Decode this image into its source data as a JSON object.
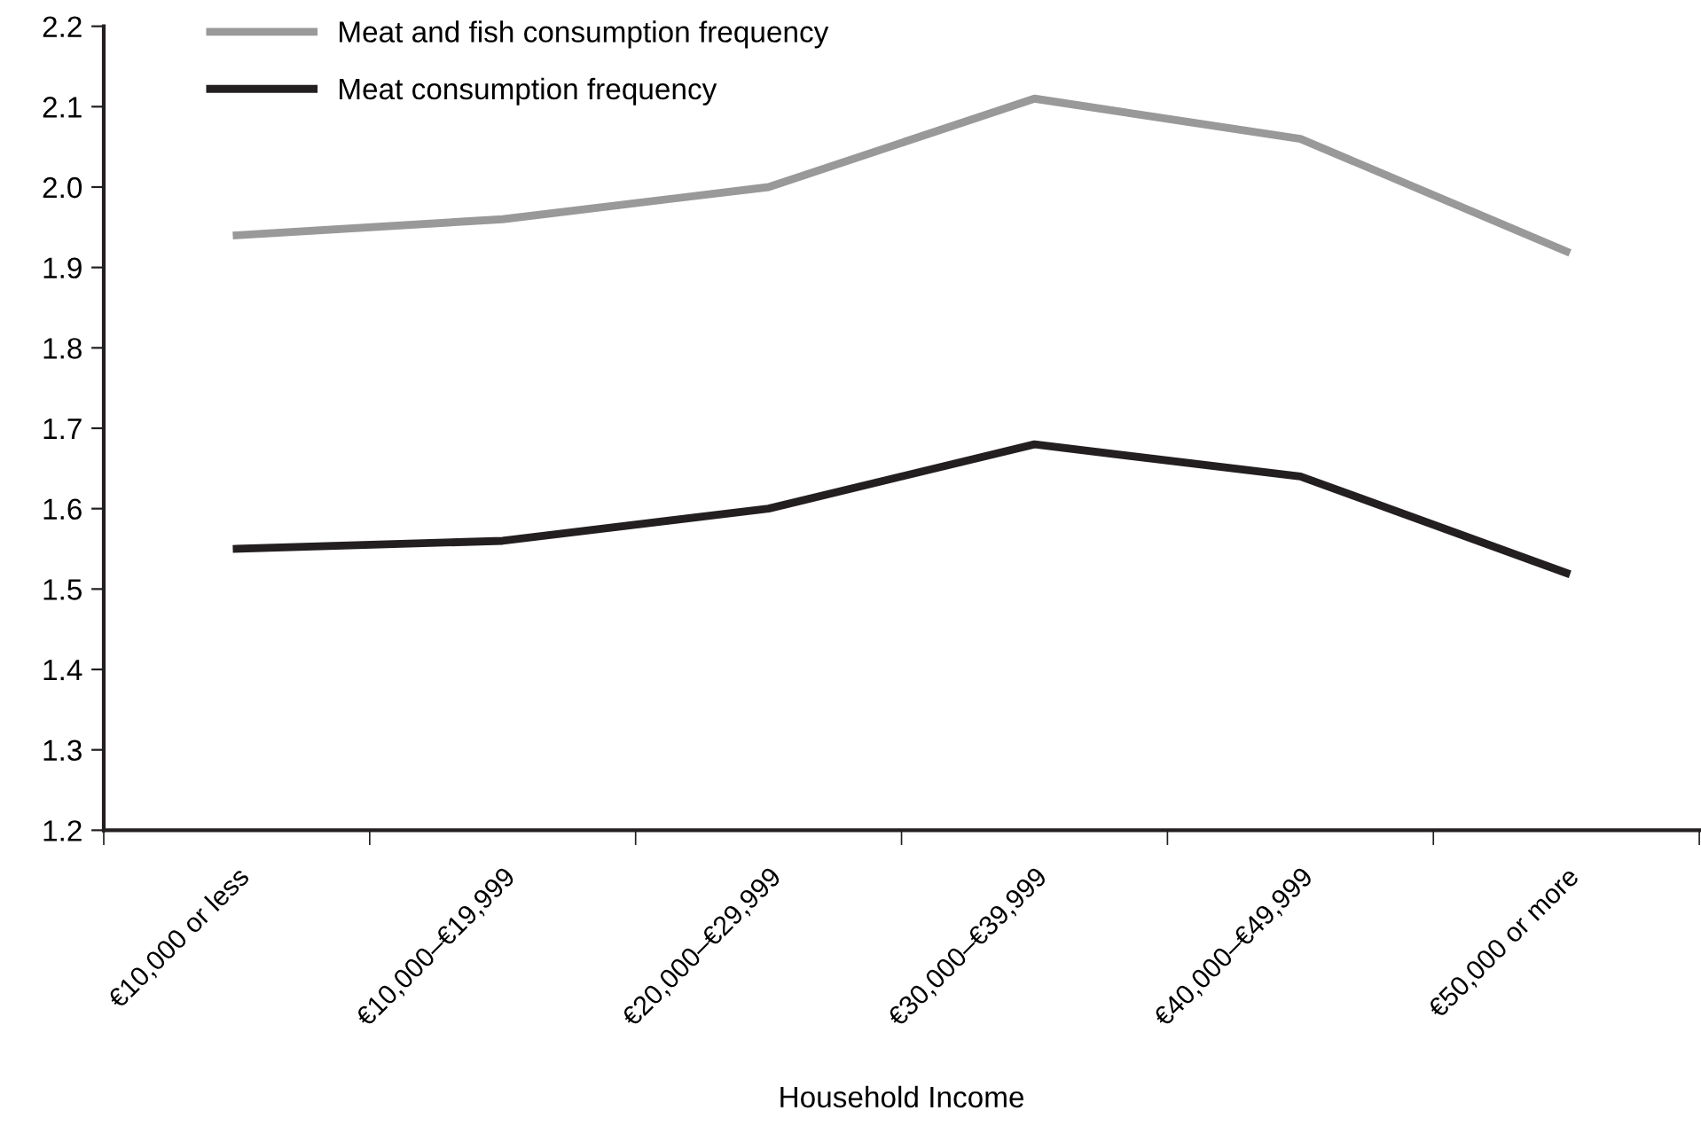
{
  "chart_data": {
    "type": "line",
    "xlabel": "Household Income",
    "categories": [
      "€10,000 or less",
      "€10,000–€19,999",
      "€20,000–€29,999",
      "€30,000–€39,999",
      "€40,000–€49,999",
      "€50,000 or more"
    ],
    "series": [
      {
        "name": "Meat and fish consumption frequency",
        "color": "#999999",
        "values": [
          1.94,
          1.96,
          2.0,
          2.11,
          2.06,
          1.92
        ]
      },
      {
        "name": "Meat consumption frequency",
        "color": "#231f20",
        "values": [
          1.55,
          1.56,
          1.6,
          1.68,
          1.64,
          1.52
        ]
      }
    ],
    "ylim": [
      1.2,
      2.2
    ],
    "yticks": [
      1.2,
      1.3,
      1.4,
      1.5,
      1.6,
      1.7,
      1.8,
      1.9,
      {
        "value": 2,
        "label": "2.0"
      },
      2.1,
      2.2
    ],
    "grid": false,
    "legend": "top left",
    "marker": "none",
    "line_style": "solid"
  }
}
